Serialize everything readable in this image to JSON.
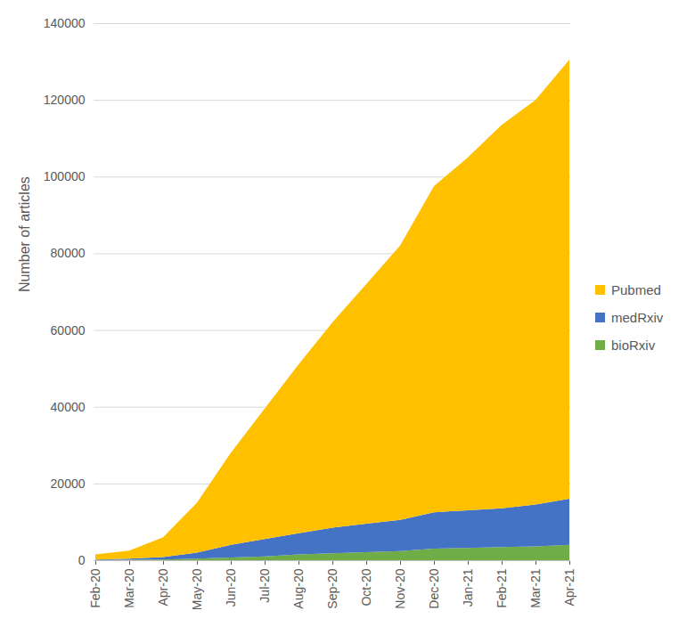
{
  "chart_data": {
    "type": "area",
    "stacked": true,
    "y_label": "Number of articles",
    "categories": [
      "Feb-20",
      "Mar-20",
      "Apr-20",
      "May-20",
      "Jun-20",
      "Jul-20",
      "Aug-20",
      "Sep-20",
      "Oct-20",
      "Nov-20",
      "Dec-20",
      "Jan-21",
      "Feb-21",
      "Mar-21",
      "Apr-21"
    ],
    "series": [
      {
        "name": "Pubmed",
        "color": "#ffc000",
        "values": [
          1300,
          2100,
          5200,
          13000,
          24000,
          34000,
          44000,
          53500,
          62500,
          71500,
          85000,
          92000,
          100000,
          105500,
          114500
        ]
      },
      {
        "name": "medRxiv",
        "color": "#4472c4",
        "values": [
          150,
          300,
          600,
          1600,
          3300,
          4500,
          5500,
          6700,
          7400,
          8100,
          9500,
          9800,
          10100,
          10900,
          12000
        ]
      },
      {
        "name": "bioRxiv",
        "color": "#70ad47",
        "values": [
          50,
          100,
          200,
          400,
          700,
          1000,
          1500,
          1800,
          2100,
          2400,
          3000,
          3200,
          3400,
          3600,
          4000
        ]
      }
    ],
    "ylim": [
      0,
      140000
    ],
    "yticks": [
      0,
      20000,
      40000,
      60000,
      80000,
      100000,
      120000,
      140000
    ],
    "grid": true,
    "legend": "right"
  }
}
